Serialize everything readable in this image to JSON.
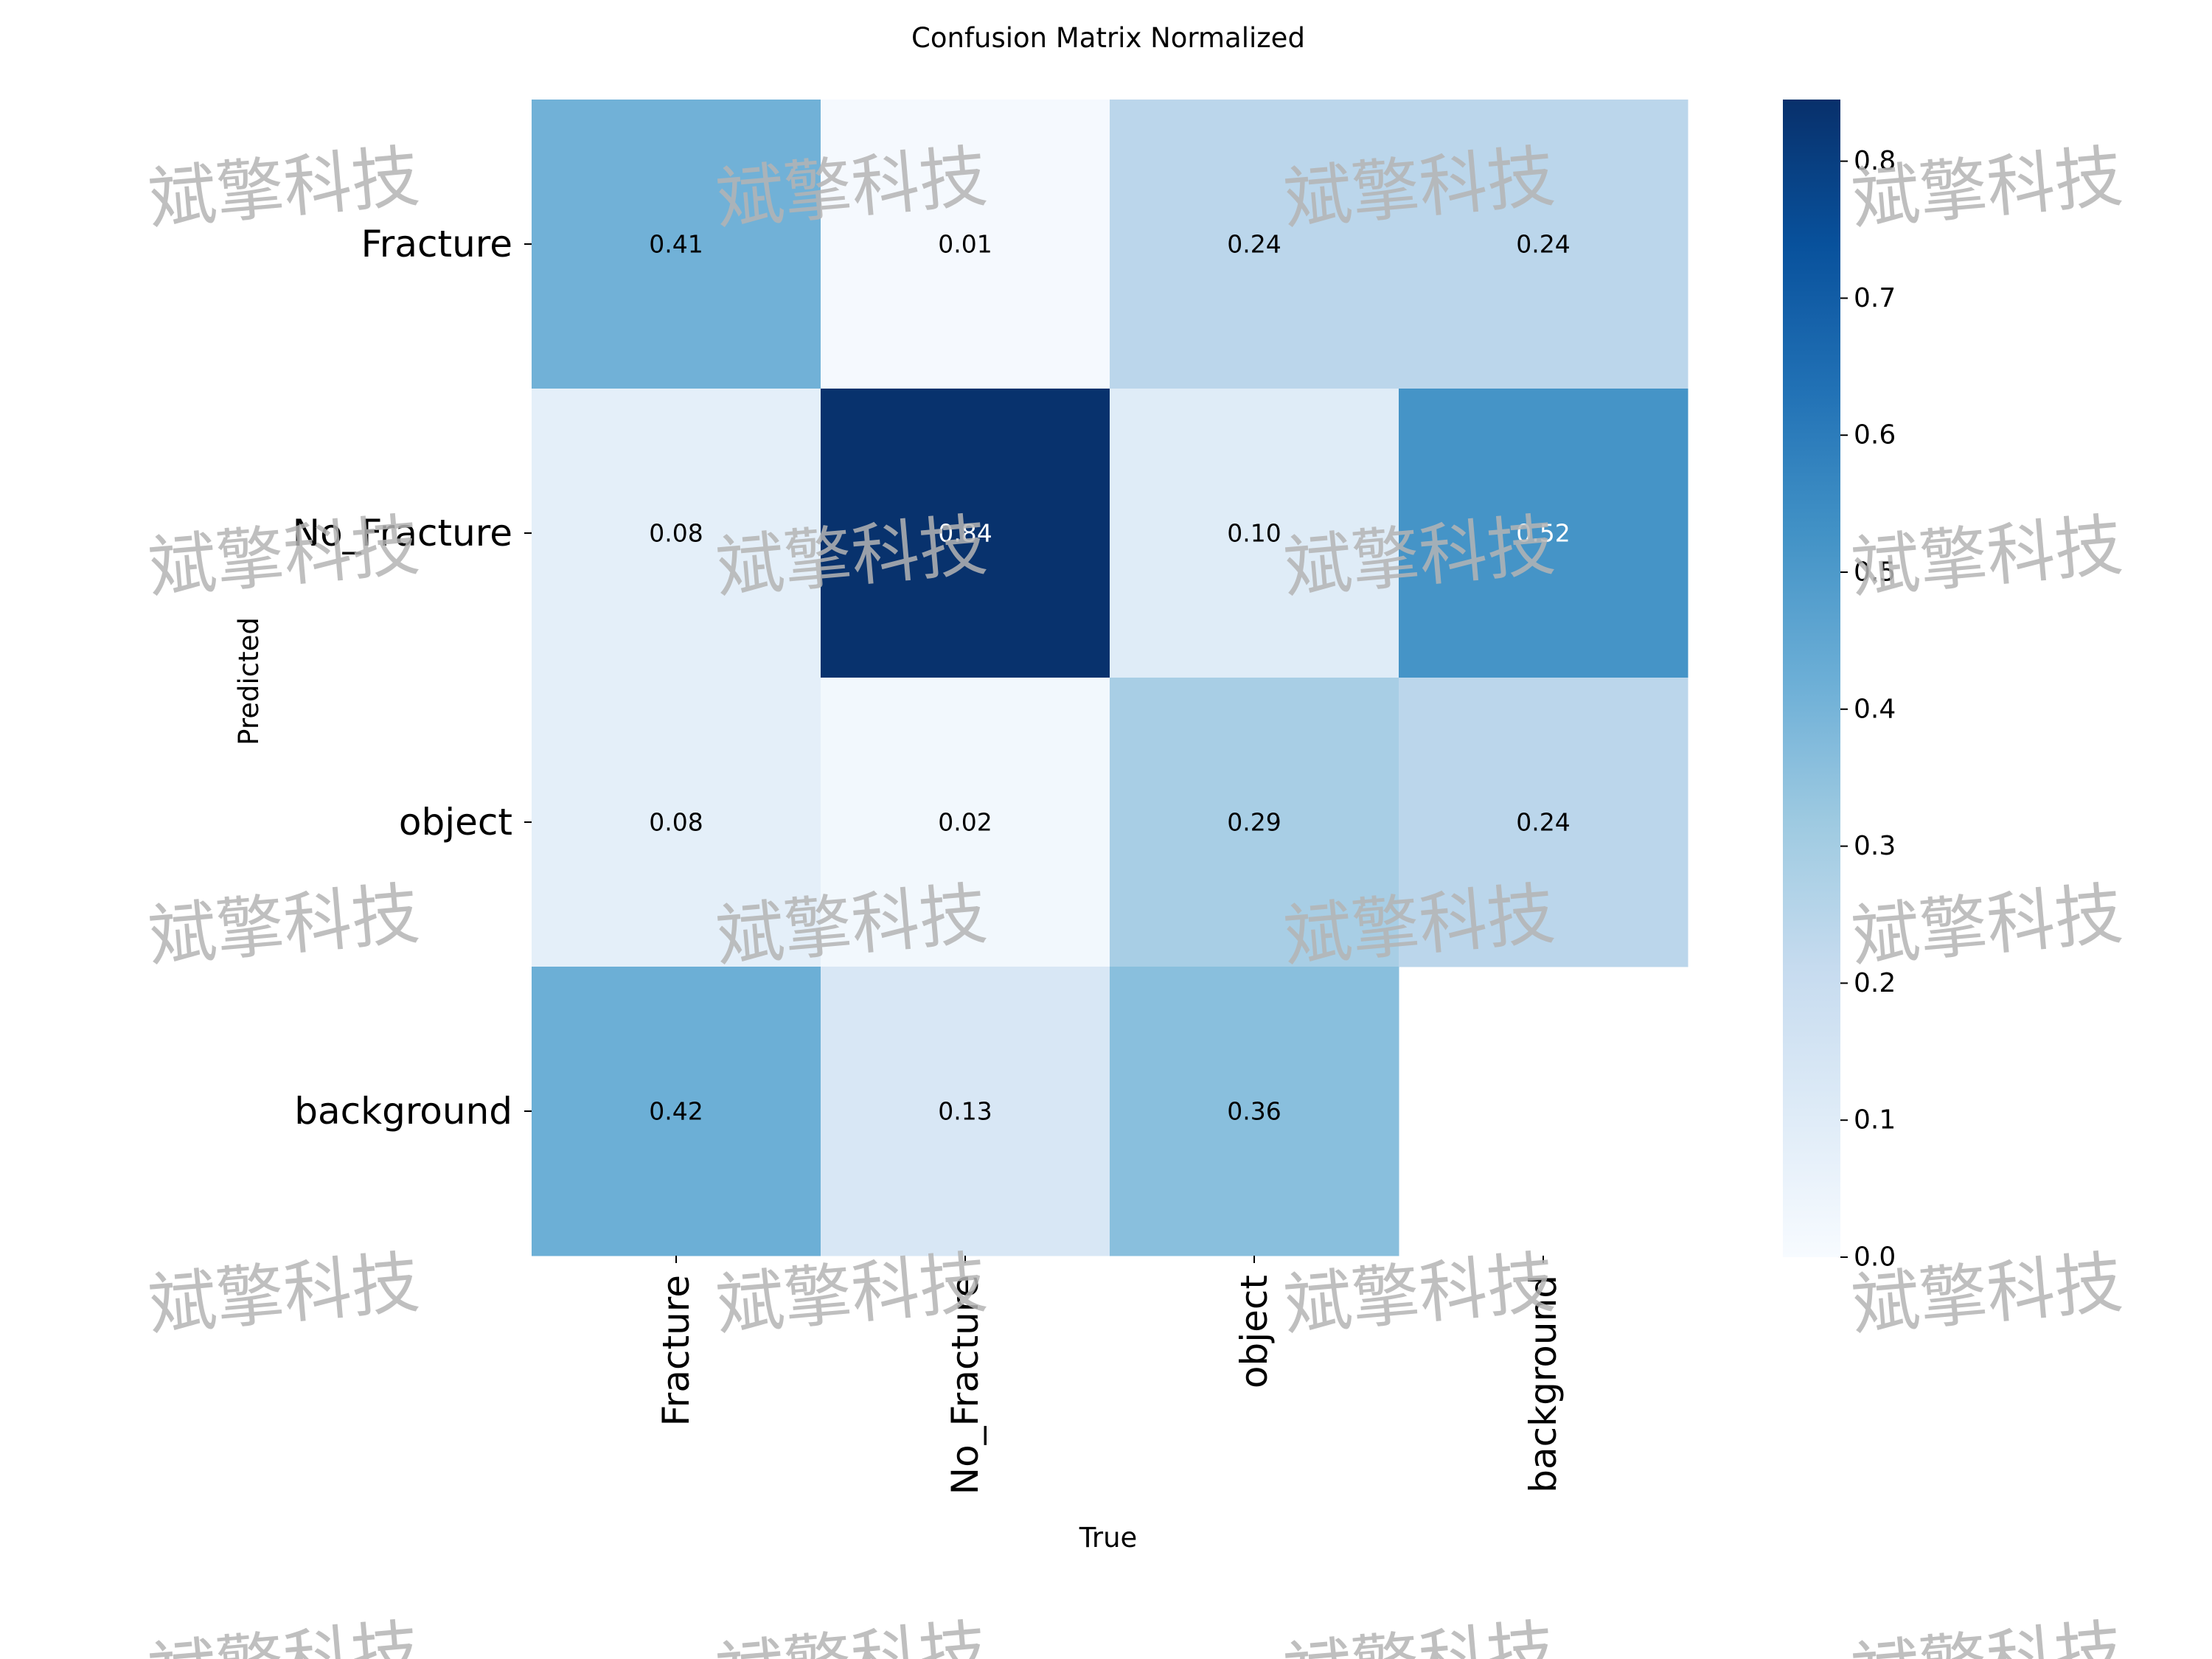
{
  "chart_data": {
    "type": "heatmap",
    "title": "Confusion Matrix Normalized",
    "xlabel": "True",
    "ylabel": "Predicted",
    "x_categories": [
      "Fracture",
      "No_Fracture",
      "object",
      "background"
    ],
    "y_categories": [
      "Fracture",
      "No_Fracture",
      "object",
      "background"
    ],
    "values": [
      [
        0.41,
        0.01,
        0.24,
        0.24
      ],
      [
        0.08,
        0.84,
        0.1,
        0.52
      ],
      [
        0.08,
        0.02,
        0.29,
        0.24
      ],
      [
        0.42,
        0.13,
        0.36,
        null
      ]
    ],
    "cell_labels": [
      [
        "0.41",
        "0.01",
        "0.24",
        "0.24"
      ],
      [
        "0.08",
        "0.84",
        "0.10",
        "0.52"
      ],
      [
        "0.08",
        "0.02",
        "0.29",
        "0.24"
      ],
      [
        "0.42",
        "0.13",
        "0.36",
        ""
      ]
    ],
    "colormap": "Blues",
    "colorbar": {
      "range": [
        0.0,
        0.845
      ],
      "ticks": [
        0.0,
        0.1,
        0.2,
        0.3,
        0.4,
        0.5,
        0.6,
        0.7,
        0.8
      ],
      "tick_labels": [
        "0.0",
        "0.1",
        "0.2",
        "0.3",
        "0.4",
        "0.5",
        "0.6",
        "0.7",
        "0.8"
      ]
    },
    "grid": false
  },
  "watermark": {
    "text": "斌擎科技",
    "color": "#b4b4b4"
  }
}
